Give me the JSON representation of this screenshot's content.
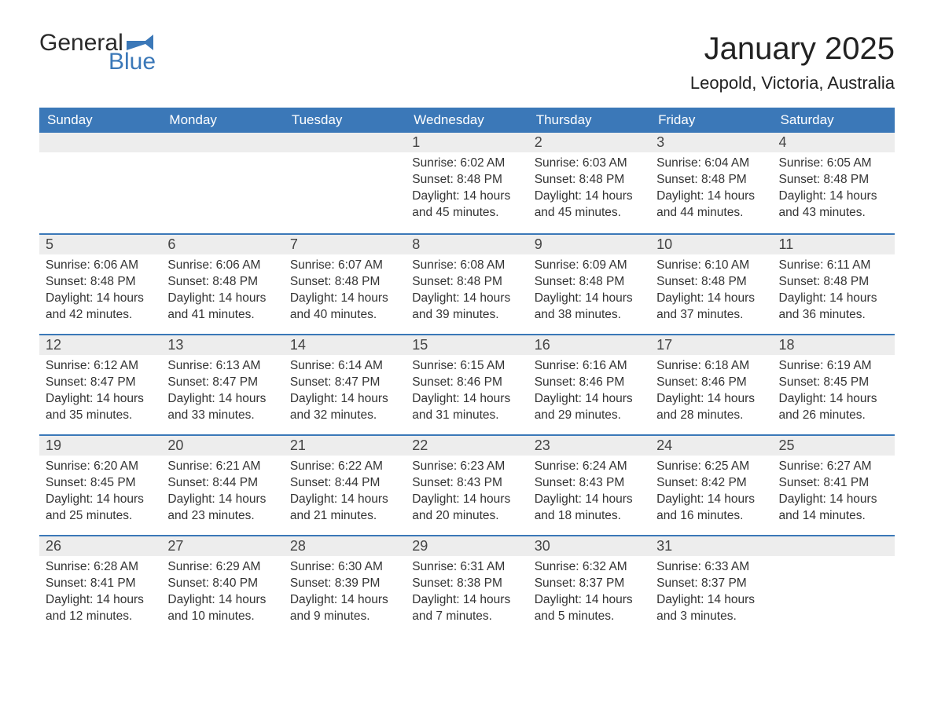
{
  "logo": {
    "word1": "General",
    "word2": "Blue"
  },
  "title": "January 2025",
  "location": "Leopold, Victoria, Australia",
  "colors": {
    "brand_blue": "#3b78b8",
    "header_text": "#ffffff",
    "daynum_bg": "#ededed",
    "text": "#333333",
    "page_bg": "#ffffff"
  },
  "day_headers": [
    "Sunday",
    "Monday",
    "Tuesday",
    "Wednesday",
    "Thursday",
    "Friday",
    "Saturday"
  ],
  "weeks": [
    [
      null,
      null,
      null,
      {
        "n": "1",
        "sunrise": "Sunrise: 6:02 AM",
        "sunset": "Sunset: 8:48 PM",
        "daylight": "Daylight: 14 hours and 45 minutes."
      },
      {
        "n": "2",
        "sunrise": "Sunrise: 6:03 AM",
        "sunset": "Sunset: 8:48 PM",
        "daylight": "Daylight: 14 hours and 45 minutes."
      },
      {
        "n": "3",
        "sunrise": "Sunrise: 6:04 AM",
        "sunset": "Sunset: 8:48 PM",
        "daylight": "Daylight: 14 hours and 44 minutes."
      },
      {
        "n": "4",
        "sunrise": "Sunrise: 6:05 AM",
        "sunset": "Sunset: 8:48 PM",
        "daylight": "Daylight: 14 hours and 43 minutes."
      }
    ],
    [
      {
        "n": "5",
        "sunrise": "Sunrise: 6:06 AM",
        "sunset": "Sunset: 8:48 PM",
        "daylight": "Daylight: 14 hours and 42 minutes."
      },
      {
        "n": "6",
        "sunrise": "Sunrise: 6:06 AM",
        "sunset": "Sunset: 8:48 PM",
        "daylight": "Daylight: 14 hours and 41 minutes."
      },
      {
        "n": "7",
        "sunrise": "Sunrise: 6:07 AM",
        "sunset": "Sunset: 8:48 PM",
        "daylight": "Daylight: 14 hours and 40 minutes."
      },
      {
        "n": "8",
        "sunrise": "Sunrise: 6:08 AM",
        "sunset": "Sunset: 8:48 PM",
        "daylight": "Daylight: 14 hours and 39 minutes."
      },
      {
        "n": "9",
        "sunrise": "Sunrise: 6:09 AM",
        "sunset": "Sunset: 8:48 PM",
        "daylight": "Daylight: 14 hours and 38 minutes."
      },
      {
        "n": "10",
        "sunrise": "Sunrise: 6:10 AM",
        "sunset": "Sunset: 8:48 PM",
        "daylight": "Daylight: 14 hours and 37 minutes."
      },
      {
        "n": "11",
        "sunrise": "Sunrise: 6:11 AM",
        "sunset": "Sunset: 8:48 PM",
        "daylight": "Daylight: 14 hours and 36 minutes."
      }
    ],
    [
      {
        "n": "12",
        "sunrise": "Sunrise: 6:12 AM",
        "sunset": "Sunset: 8:47 PM",
        "daylight": "Daylight: 14 hours and 35 minutes."
      },
      {
        "n": "13",
        "sunrise": "Sunrise: 6:13 AM",
        "sunset": "Sunset: 8:47 PM",
        "daylight": "Daylight: 14 hours and 33 minutes."
      },
      {
        "n": "14",
        "sunrise": "Sunrise: 6:14 AM",
        "sunset": "Sunset: 8:47 PM",
        "daylight": "Daylight: 14 hours and 32 minutes."
      },
      {
        "n": "15",
        "sunrise": "Sunrise: 6:15 AM",
        "sunset": "Sunset: 8:46 PM",
        "daylight": "Daylight: 14 hours and 31 minutes."
      },
      {
        "n": "16",
        "sunrise": "Sunrise: 6:16 AM",
        "sunset": "Sunset: 8:46 PM",
        "daylight": "Daylight: 14 hours and 29 minutes."
      },
      {
        "n": "17",
        "sunrise": "Sunrise: 6:18 AM",
        "sunset": "Sunset: 8:46 PM",
        "daylight": "Daylight: 14 hours and 28 minutes."
      },
      {
        "n": "18",
        "sunrise": "Sunrise: 6:19 AM",
        "sunset": "Sunset: 8:45 PM",
        "daylight": "Daylight: 14 hours and 26 minutes."
      }
    ],
    [
      {
        "n": "19",
        "sunrise": "Sunrise: 6:20 AM",
        "sunset": "Sunset: 8:45 PM",
        "daylight": "Daylight: 14 hours and 25 minutes."
      },
      {
        "n": "20",
        "sunrise": "Sunrise: 6:21 AM",
        "sunset": "Sunset: 8:44 PM",
        "daylight": "Daylight: 14 hours and 23 minutes."
      },
      {
        "n": "21",
        "sunrise": "Sunrise: 6:22 AM",
        "sunset": "Sunset: 8:44 PM",
        "daylight": "Daylight: 14 hours and 21 minutes."
      },
      {
        "n": "22",
        "sunrise": "Sunrise: 6:23 AM",
        "sunset": "Sunset: 8:43 PM",
        "daylight": "Daylight: 14 hours and 20 minutes."
      },
      {
        "n": "23",
        "sunrise": "Sunrise: 6:24 AM",
        "sunset": "Sunset: 8:43 PM",
        "daylight": "Daylight: 14 hours and 18 minutes."
      },
      {
        "n": "24",
        "sunrise": "Sunrise: 6:25 AM",
        "sunset": "Sunset: 8:42 PM",
        "daylight": "Daylight: 14 hours and 16 minutes."
      },
      {
        "n": "25",
        "sunrise": "Sunrise: 6:27 AM",
        "sunset": "Sunset: 8:41 PM",
        "daylight": "Daylight: 14 hours and 14 minutes."
      }
    ],
    [
      {
        "n": "26",
        "sunrise": "Sunrise: 6:28 AM",
        "sunset": "Sunset: 8:41 PM",
        "daylight": "Daylight: 14 hours and 12 minutes."
      },
      {
        "n": "27",
        "sunrise": "Sunrise: 6:29 AM",
        "sunset": "Sunset: 8:40 PM",
        "daylight": "Daylight: 14 hours and 10 minutes."
      },
      {
        "n": "28",
        "sunrise": "Sunrise: 6:30 AM",
        "sunset": "Sunset: 8:39 PM",
        "daylight": "Daylight: 14 hours and 9 minutes."
      },
      {
        "n": "29",
        "sunrise": "Sunrise: 6:31 AM",
        "sunset": "Sunset: 8:38 PM",
        "daylight": "Daylight: 14 hours and 7 minutes."
      },
      {
        "n": "30",
        "sunrise": "Sunrise: 6:32 AM",
        "sunset": "Sunset: 8:37 PM",
        "daylight": "Daylight: 14 hours and 5 minutes."
      },
      {
        "n": "31",
        "sunrise": "Sunrise: 6:33 AM",
        "sunset": "Sunset: 8:37 PM",
        "daylight": "Daylight: 14 hours and 3 minutes."
      },
      null
    ]
  ]
}
